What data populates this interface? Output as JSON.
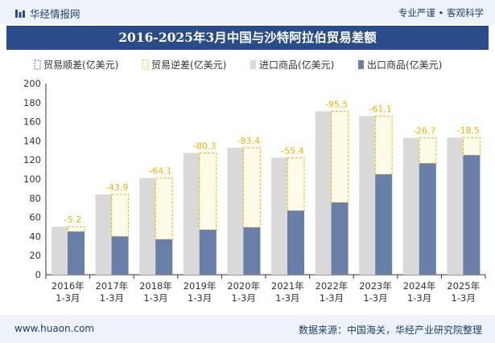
{
  "header": {
    "brand": "华经情报网",
    "right_text": "专业严谨 • 客观科学"
  },
  "title": "2016-2025年3月中国与沙特阿拉伯贸易差额",
  "footer": {
    "left": "www.huaon.com",
    "right": "数据来源：中国海关，华经产业研究院整理"
  },
  "legend": [
    {
      "label": "贸易顺差(亿美元)"
    },
    {
      "label": "贸易逆差(亿美元)"
    },
    {
      "label": "进口商品(亿美元)"
    },
    {
      "label": "出口商品(亿美元)"
    }
  ],
  "colors": {
    "import": "#d9d9d9",
    "export": "#6a7fa8",
    "deficit": "#f0b400",
    "surplus_border": "#3f6ea8",
    "title_bg": "#2b4c8a"
  },
  "chart_data": {
    "type": "bar",
    "categories": [
      [
        "2016年",
        "1-3月"
      ],
      [
        "2017年",
        "1-3月"
      ],
      [
        "2018年",
        "1-3月"
      ],
      [
        "2019年",
        "1-3月"
      ],
      [
        "2020年",
        "1-3月"
      ],
      [
        "2021年",
        "1-3月"
      ],
      [
        "2022年",
        "1-3月"
      ],
      [
        "2023年",
        "1-3月"
      ],
      [
        "2024年",
        "1-3月"
      ],
      [
        "2025年",
        "1-3月"
      ]
    ],
    "series": [
      {
        "name": "进口商品(亿美元)",
        "values": [
          50.3,
          83.9,
          101.1,
          127.3,
          132.9,
          122.4,
          171.0,
          166.1,
          143.2,
          143.5
        ]
      },
      {
        "name": "出口商品(亿美元)",
        "values": [
          45.1,
          40.0,
          37.0,
          47.0,
          49.5,
          67.0,
          75.5,
          105.0,
          116.5,
          125.0
        ]
      },
      {
        "name": "贸易逆差(亿美元)",
        "values": [
          -5.2,
          -43.9,
          -64.1,
          -80.3,
          -83.4,
          -55.4,
          -95.5,
          -61.1,
          -26.7,
          -18.5
        ]
      }
    ],
    "data_labels": [
      "-5.2",
      "-43.9",
      "-64.1",
      "-80.3",
      "-83.4",
      "-55.4",
      "-95.5",
      "-61.1",
      "-26.7",
      "-18.5"
    ],
    "ylim": [
      0,
      200
    ],
    "yticks": [
      0,
      20,
      40,
      60,
      80,
      100,
      120,
      140,
      160,
      180,
      200
    ],
    "legend_position": "top",
    "grid": false
  }
}
